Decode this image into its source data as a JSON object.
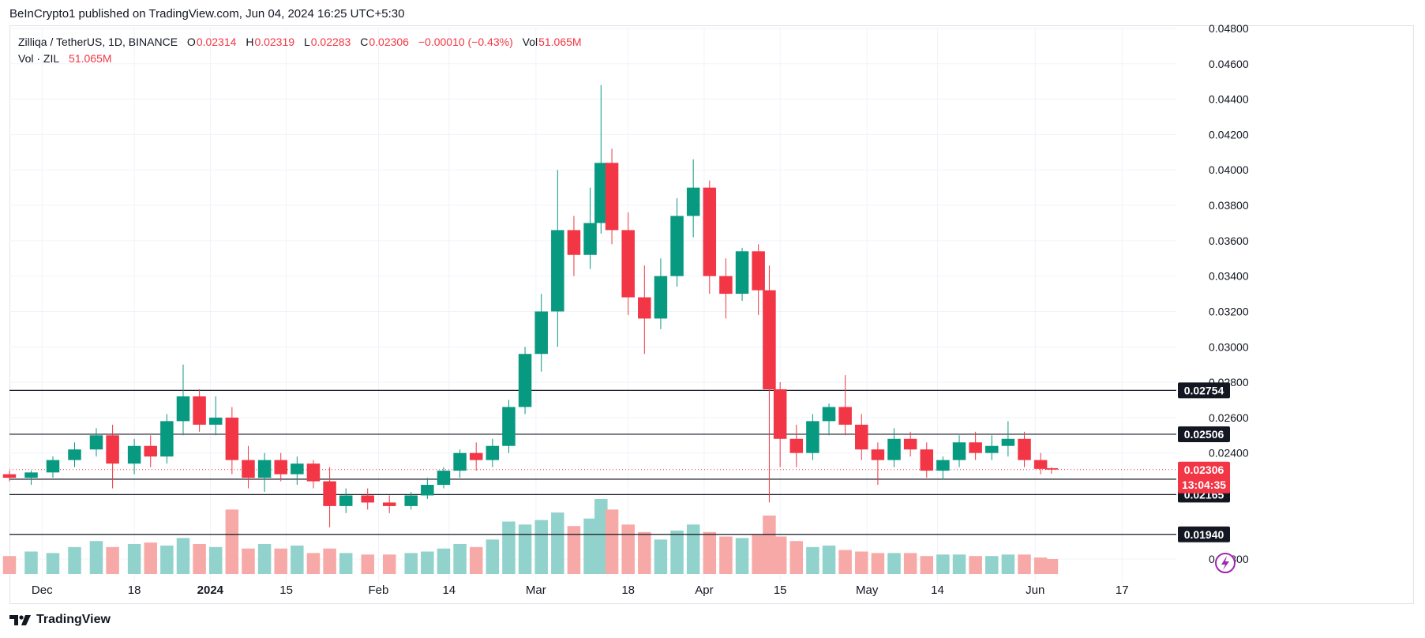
{
  "header": {
    "publisher": "BeInCrypto1 published on TradingView.com, Jun 04, 2024 16:25 UTC+5:30"
  },
  "legend": {
    "symbol": "Zilliqa / TetherUS, 1D, BINANCE",
    "o_label": "O",
    "o_value": "0.02314",
    "h_label": "H",
    "h_value": "0.02319",
    "l_label": "L",
    "l_value": "0.02283",
    "c_label": "C",
    "c_value": "0.02306",
    "change": "−0.00010 (−0.43%)",
    "vol_label": "Vol",
    "vol_value": "51.065M",
    "vol_series_label": "Vol · ZIL",
    "vol_series_value": "51.065M"
  },
  "footer": {
    "brand": "TradingView"
  },
  "colors": {
    "up": "#089981",
    "down": "#f23645",
    "vol_up": "#92d2cc",
    "vol_down": "#f7a9a7",
    "grid": "#f0f3fa",
    "level_line": "#131722",
    "tag_bg": "#131722"
  },
  "chart_data": {
    "type": "candlestick",
    "y_axis_ticks": [
      "0.04800",
      "0.04600",
      "0.04400",
      "0.04200",
      "0.04000",
      "0.03800",
      "0.03600",
      "0.03400",
      "0.03200",
      "0.03000",
      "0.02800",
      "0.02600",
      "0.02400",
      "0.01800"
    ],
    "y_range": [
      0.0168,
      0.048
    ],
    "x_axis_labels": [
      {
        "label": "Dec",
        "date": "2023-12-01"
      },
      {
        "label": "18",
        "date": "2023-12-18"
      },
      {
        "label": "2024",
        "date": "2024-01-01"
      },
      {
        "label": "15",
        "date": "2024-01-15"
      },
      {
        "label": "Feb",
        "date": "2024-02-01"
      },
      {
        "label": "14",
        "date": "2024-02-14"
      },
      {
        "label": "Mar",
        "date": "2024-03-01"
      },
      {
        "label": "18",
        "date": "2024-03-18"
      },
      {
        "label": "Apr",
        "date": "2024-04-01"
      },
      {
        "label": "15",
        "date": "2024-04-15"
      },
      {
        "label": "May",
        "date": "2024-05-01"
      },
      {
        "label": "14",
        "date": "2024-05-14"
      },
      {
        "label": "Jun",
        "date": "2024-06-01"
      },
      {
        "label": "17",
        "date": "2024-06-17"
      }
    ],
    "x_range": [
      "2023-11-25",
      "2024-06-27"
    ],
    "horizontal_levels": [
      {
        "value": 0.02754,
        "label": "0.02754"
      },
      {
        "value": 0.02506,
        "label": "0.02506"
      },
      {
        "value": 0.02252,
        "label": "0.02252"
      },
      {
        "value": 0.02165,
        "label": "0.02165"
      },
      {
        "value": 0.0194,
        "label": "0.01940"
      }
    ],
    "last_price": {
      "value": 0.02306,
      "label": "0.02306",
      "countdown": "13:04:35"
    },
    "candles": [
      {
        "d": "2023-11-25",
        "o": 0.0228,
        "h": 0.023,
        "l": 0.0224,
        "c": 0.0226
      },
      {
        "d": "2023-11-29",
        "o": 0.0226,
        "h": 0.023,
        "l": 0.0222,
        "c": 0.0229
      },
      {
        "d": "2023-12-03",
        "o": 0.0229,
        "h": 0.0238,
        "l": 0.0226,
        "c": 0.0236
      },
      {
        "d": "2023-12-07",
        "o": 0.0236,
        "h": 0.0246,
        "l": 0.0232,
        "c": 0.0242
      },
      {
        "d": "2023-12-11",
        "o": 0.0242,
        "h": 0.0254,
        "l": 0.0238,
        "c": 0.025
      },
      {
        "d": "2023-12-14",
        "o": 0.025,
        "h": 0.0256,
        "l": 0.022,
        "c": 0.0234
      },
      {
        "d": "2023-12-18",
        "o": 0.0234,
        "h": 0.0248,
        "l": 0.0228,
        "c": 0.0244
      },
      {
        "d": "2023-12-21",
        "o": 0.0244,
        "h": 0.025,
        "l": 0.0232,
        "c": 0.0238
      },
      {
        "d": "2023-12-24",
        "o": 0.0238,
        "h": 0.0262,
        "l": 0.0234,
        "c": 0.0258
      },
      {
        "d": "2023-12-27",
        "o": 0.0258,
        "h": 0.029,
        "l": 0.025,
        "c": 0.0272
      },
      {
        "d": "2023-12-30",
        "o": 0.0272,
        "h": 0.0276,
        "l": 0.0252,
        "c": 0.0256
      },
      {
        "d": "2024-01-02",
        "o": 0.0256,
        "h": 0.0272,
        "l": 0.025,
        "c": 0.026
      },
      {
        "d": "2024-01-05",
        "o": 0.026,
        "h": 0.0266,
        "l": 0.0228,
        "c": 0.0236
      },
      {
        "d": "2024-01-08",
        "o": 0.0236,
        "h": 0.0244,
        "l": 0.022,
        "c": 0.0226
      },
      {
        "d": "2024-01-11",
        "o": 0.0226,
        "h": 0.024,
        "l": 0.0218,
        "c": 0.0236
      },
      {
        "d": "2024-01-14",
        "o": 0.0236,
        "h": 0.024,
        "l": 0.0224,
        "c": 0.0228
      },
      {
        "d": "2024-01-17",
        "o": 0.0228,
        "h": 0.0238,
        "l": 0.0222,
        "c": 0.0234
      },
      {
        "d": "2024-01-20",
        "o": 0.0234,
        "h": 0.0236,
        "l": 0.022,
        "c": 0.0224
      },
      {
        "d": "2024-01-23",
        "o": 0.0224,
        "h": 0.0232,
        "l": 0.0198,
        "c": 0.021
      },
      {
        "d": "2024-01-26",
        "o": 0.021,
        "h": 0.022,
        "l": 0.0206,
        "c": 0.0216
      },
      {
        "d": "2024-01-30",
        "o": 0.0216,
        "h": 0.022,
        "l": 0.0208,
        "c": 0.0212
      },
      {
        "d": "2024-02-03",
        "o": 0.0212,
        "h": 0.0216,
        "l": 0.0206,
        "c": 0.021
      },
      {
        "d": "2024-02-07",
        "o": 0.021,
        "h": 0.0218,
        "l": 0.0208,
        "c": 0.0216
      },
      {
        "d": "2024-02-10",
        "o": 0.0216,
        "h": 0.0226,
        "l": 0.0214,
        "c": 0.0222
      },
      {
        "d": "2024-02-13",
        "o": 0.0222,
        "h": 0.0232,
        "l": 0.022,
        "c": 0.023
      },
      {
        "d": "2024-02-16",
        "o": 0.023,
        "h": 0.0242,
        "l": 0.0226,
        "c": 0.024
      },
      {
        "d": "2024-02-19",
        "o": 0.024,
        "h": 0.0246,
        "l": 0.023,
        "c": 0.0236
      },
      {
        "d": "2024-02-22",
        "o": 0.0236,
        "h": 0.0248,
        "l": 0.0232,
        "c": 0.0244
      },
      {
        "d": "2024-02-25",
        "o": 0.0244,
        "h": 0.027,
        "l": 0.024,
        "c": 0.0266
      },
      {
        "d": "2024-02-28",
        "o": 0.0266,
        "h": 0.03,
        "l": 0.0262,
        "c": 0.0296
      },
      {
        "d": "2024-03-02",
        "o": 0.0296,
        "h": 0.033,
        "l": 0.0286,
        "c": 0.032
      },
      {
        "d": "2024-03-05",
        "o": 0.032,
        "h": 0.04,
        "l": 0.03,
        "c": 0.0366
      },
      {
        "d": "2024-03-08",
        "o": 0.0366,
        "h": 0.0374,
        "l": 0.034,
        "c": 0.0352
      },
      {
        "d": "2024-03-11",
        "o": 0.0352,
        "h": 0.039,
        "l": 0.0344,
        "c": 0.037
      },
      {
        "d": "2024-03-13",
        "o": 0.037,
        "h": 0.0448,
        "l": 0.0364,
        "c": 0.0404
      },
      {
        "d": "2024-03-15",
        "o": 0.0404,
        "h": 0.0412,
        "l": 0.0358,
        "c": 0.0366
      },
      {
        "d": "2024-03-18",
        "o": 0.0366,
        "h": 0.0376,
        "l": 0.0318,
        "c": 0.0328
      },
      {
        "d": "2024-03-21",
        "o": 0.0328,
        "h": 0.0346,
        "l": 0.0296,
        "c": 0.0316
      },
      {
        "d": "2024-03-24",
        "o": 0.0316,
        "h": 0.035,
        "l": 0.031,
        "c": 0.034
      },
      {
        "d": "2024-03-27",
        "o": 0.034,
        "h": 0.0384,
        "l": 0.0334,
        "c": 0.0374
      },
      {
        "d": "2024-03-30",
        "o": 0.0374,
        "h": 0.0406,
        "l": 0.0362,
        "c": 0.039
      },
      {
        "d": "2024-04-02",
        "o": 0.039,
        "h": 0.0394,
        "l": 0.033,
        "c": 0.034
      },
      {
        "d": "2024-04-05",
        "o": 0.034,
        "h": 0.035,
        "l": 0.0316,
        "c": 0.033
      },
      {
        "d": "2024-04-08",
        "o": 0.033,
        "h": 0.0356,
        "l": 0.0326,
        "c": 0.0354
      },
      {
        "d": "2024-04-11",
        "o": 0.0354,
        "h": 0.0358,
        "l": 0.0318,
        "c": 0.0332
      },
      {
        "d": "2024-04-13",
        "o": 0.0332,
        "h": 0.0346,
        "l": 0.0212,
        "c": 0.0276
      },
      {
        "d": "2024-04-15",
        "o": 0.0276,
        "h": 0.028,
        "l": 0.0232,
        "c": 0.0248
      },
      {
        "d": "2024-04-18",
        "o": 0.0248,
        "h": 0.0256,
        "l": 0.0232,
        "c": 0.024
      },
      {
        "d": "2024-04-21",
        "o": 0.024,
        "h": 0.0262,
        "l": 0.0236,
        "c": 0.0258
      },
      {
        "d": "2024-04-24",
        "o": 0.0258,
        "h": 0.0268,
        "l": 0.025,
        "c": 0.0266
      },
      {
        "d": "2024-04-27",
        "o": 0.0266,
        "h": 0.0284,
        "l": 0.025,
        "c": 0.0256
      },
      {
        "d": "2024-04-30",
        "o": 0.0256,
        "h": 0.0262,
        "l": 0.0236,
        "c": 0.0242
      },
      {
        "d": "2024-05-03",
        "o": 0.0242,
        "h": 0.0246,
        "l": 0.0222,
        "c": 0.0236
      },
      {
        "d": "2024-05-06",
        "o": 0.0236,
        "h": 0.0254,
        "l": 0.0232,
        "c": 0.0248
      },
      {
        "d": "2024-05-09",
        "o": 0.0248,
        "h": 0.0252,
        "l": 0.0238,
        "c": 0.0242
      },
      {
        "d": "2024-05-12",
        "o": 0.0242,
        "h": 0.0246,
        "l": 0.0226,
        "c": 0.023
      },
      {
        "d": "2024-05-15",
        "o": 0.023,
        "h": 0.0238,
        "l": 0.0225,
        "c": 0.0236
      },
      {
        "d": "2024-05-18",
        "o": 0.0236,
        "h": 0.025,
        "l": 0.0232,
        "c": 0.0246
      },
      {
        "d": "2024-05-21",
        "o": 0.0246,
        "h": 0.0252,
        "l": 0.0236,
        "c": 0.024
      },
      {
        "d": "2024-05-24",
        "o": 0.024,
        "h": 0.025,
        "l": 0.0236,
        "c": 0.0244
      },
      {
        "d": "2024-05-27",
        "o": 0.0244,
        "h": 0.0258,
        "l": 0.0238,
        "c": 0.0248
      },
      {
        "d": "2024-05-30",
        "o": 0.0248,
        "h": 0.0252,
        "l": 0.0232,
        "c": 0.0236
      },
      {
        "d": "2024-06-02",
        "o": 0.0236,
        "h": 0.024,
        "l": 0.0228,
        "c": 0.0231
      },
      {
        "d": "2024-06-04",
        "o": 0.02314,
        "h": 0.02319,
        "l": 0.02283,
        "c": 0.02306
      }
    ]
  }
}
